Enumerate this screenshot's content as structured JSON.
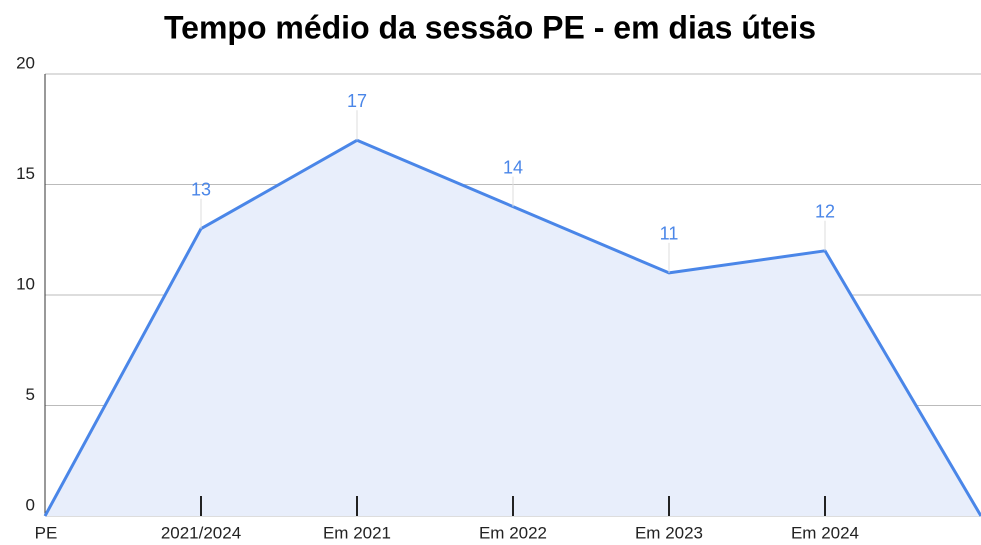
{
  "chart_data": {
    "type": "area",
    "title": "Tempo médio da sessão PE - em dias úteis",
    "categories": [
      "PE",
      "2021/2024",
      "Em 2021",
      "Em 2022",
      "Em 2023",
      "Em 2024",
      null
    ],
    "values": [
      0,
      13,
      17,
      14,
      11,
      12,
      0
    ],
    "value_labels": [
      null,
      "13",
      "17",
      "14",
      "11",
      "12",
      null
    ],
    "color": "#4a86e8",
    "fill": "#e8eefb",
    "ylim": [
      0,
      20
    ],
    "yticks": [
      0,
      5,
      10,
      15,
      20
    ],
    "grid": true
  }
}
